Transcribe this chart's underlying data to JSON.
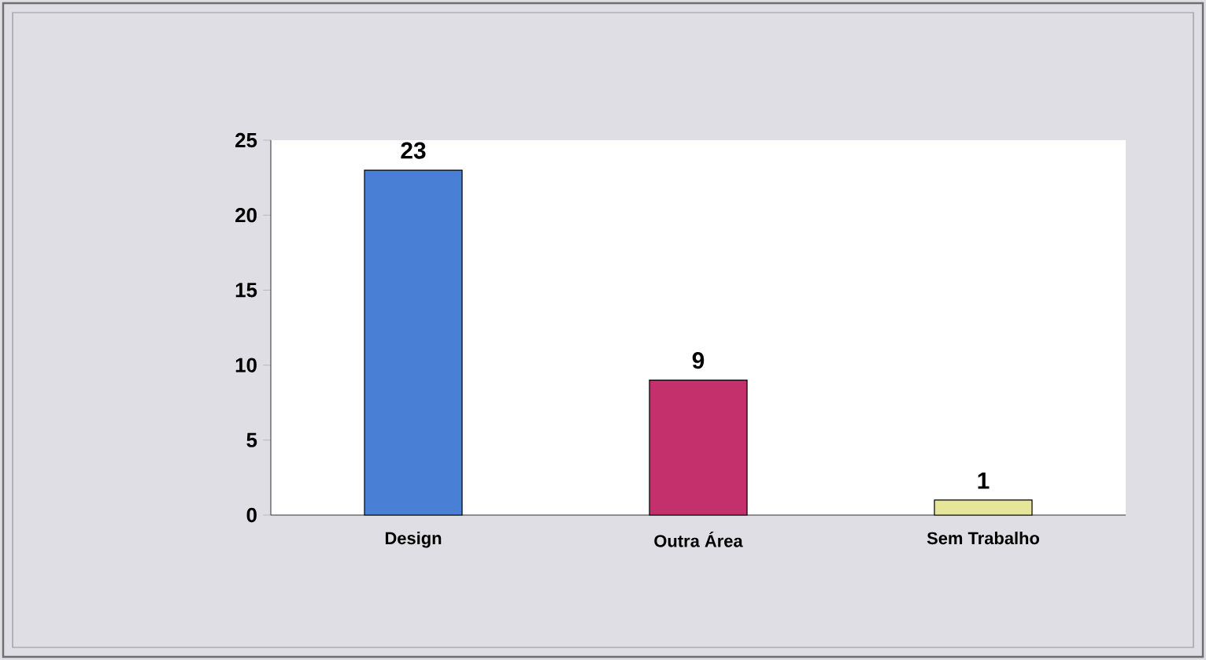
{
  "chart_data": {
    "type": "bar",
    "categories": [
      "Design",
      "Outra Área",
      "Sem Trabalho"
    ],
    "values": [
      23,
      9,
      1
    ],
    "colors": [
      "#4a7fd6",
      "#c4306c",
      "#e6e69a"
    ],
    "ylim": [
      0,
      25
    ],
    "yticks": [
      0,
      5,
      10,
      15,
      20,
      25
    ],
    "data_labels": true,
    "grid": false
  }
}
